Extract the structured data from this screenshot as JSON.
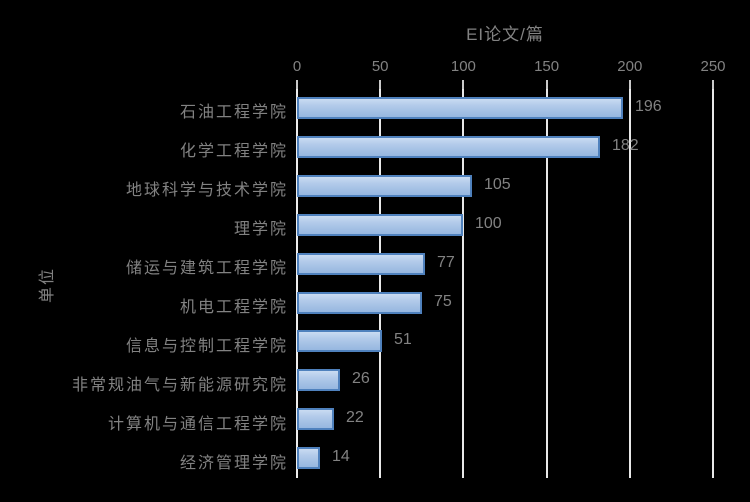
{
  "chart_data": {
    "type": "bar",
    "orientation": "horizontal",
    "title": "EI论文/篇",
    "ylabel": "单位",
    "xlabel": "",
    "categories": [
      "石油工程学院",
      "化学工程学院",
      "地球科学与技术学院",
      "理学院",
      "储运与建筑工程学院",
      "机电工程学院",
      "信息与控制工程学院",
      "非常规油气与新能源研究院",
      "计算机与通信工程学院",
      "经济管理学院"
    ],
    "values": [
      196,
      182,
      105,
      100,
      77,
      75,
      51,
      26,
      22,
      14
    ],
    "x_ticks": [
      0,
      50,
      100,
      150,
      200,
      250
    ],
    "xlim": [
      0,
      250
    ],
    "grid": true,
    "data_labels": true,
    "legend": "none",
    "value_axis_position": "top"
  },
  "colors": {
    "background": "#000000",
    "bar_fill": "#a9c4e6",
    "bar_border": "#4f81bd",
    "text": "#828282",
    "gridline": "#e8e8e8",
    "axis_line": "#ededed",
    "tick_mark": "#c9c9c9"
  }
}
